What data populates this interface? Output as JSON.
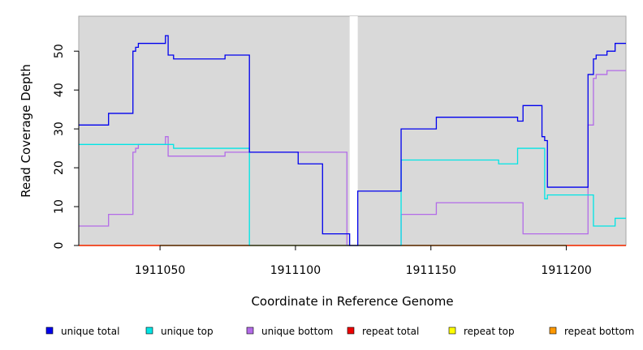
{
  "chart_data": {
    "type": "line",
    "title": "",
    "xlabel": "Coordinate in Reference Genome",
    "ylabel": "Read Coverage Depth",
    "xlim": [
      1911020,
      1911222
    ],
    "ylim": [
      0,
      59
    ],
    "xticks": [
      1911050,
      1911100,
      1911150,
      1911200
    ],
    "yticks": [
      0,
      10,
      20,
      30,
      40,
      50
    ],
    "grid": false,
    "legend_position": "bottom",
    "panel_background": "#d9d9d9",
    "gap_x_range": [
      1911120,
      1911123
    ],
    "series": [
      {
        "name": "unique total",
        "color": "#0000ee",
        "x": [
          1911020,
          1911031,
          1911040,
          1911041,
          1911042,
          1911052,
          1911053,
          1911055,
          1911074,
          1911083,
          1911095,
          1911101,
          1911110,
          1911119,
          1911120,
          1911123,
          1911139,
          1911152,
          1911175,
          1911182,
          1911184,
          1911191,
          1911192,
          1911193,
          1911208,
          1911210,
          1911211,
          1911215,
          1911218,
          1911222
        ],
        "y": [
          31,
          34,
          50,
          51,
          52,
          54,
          49,
          48,
          49,
          24,
          24,
          21,
          3,
          3,
          0,
          14,
          30,
          33,
          33,
          32,
          36,
          28,
          27,
          15,
          44,
          48,
          49,
          50,
          52,
          52
        ]
      },
      {
        "name": "unique top",
        "color": "#00e5e5",
        "x": [
          1911020,
          1911053,
          1911055,
          1911083,
          1911119,
          1911120,
          1911123,
          1911139,
          1911175,
          1911182,
          1911192,
          1911193,
          1911208,
          1911210,
          1911218,
          1911222
        ],
        "y": [
          26,
          26,
          25,
          0,
          0,
          0,
          0,
          22,
          21,
          25,
          12,
          13,
          13,
          5,
          7,
          7
        ]
      },
      {
        "name": "unique bottom",
        "color": "#b36be8",
        "x": [
          1911020,
          1911031,
          1911040,
          1911041,
          1911042,
          1911052,
          1911053,
          1911074,
          1911083,
          1911119,
          1911120,
          1911123,
          1911139,
          1911152,
          1911184,
          1911208,
          1911210,
          1911211,
          1911215,
          1911222
        ],
        "y": [
          5,
          8,
          24,
          25,
          26,
          28,
          23,
          24,
          24,
          0,
          0,
          0,
          8,
          11,
          3,
          31,
          43,
          44,
          45,
          45
        ]
      },
      {
        "name": "repeat total",
        "color": "#ee0000",
        "x": [
          1911020,
          1911222
        ],
        "y": [
          0,
          0
        ]
      },
      {
        "name": "repeat top",
        "color": "#ffff00",
        "x": [
          1911020,
          1911222
        ],
        "y": [
          0,
          0
        ]
      },
      {
        "name": "repeat bottom",
        "color": "#ff9900",
        "x": [
          1911020,
          1911222
        ],
        "y": [
          0,
          0
        ]
      }
    ]
  }
}
